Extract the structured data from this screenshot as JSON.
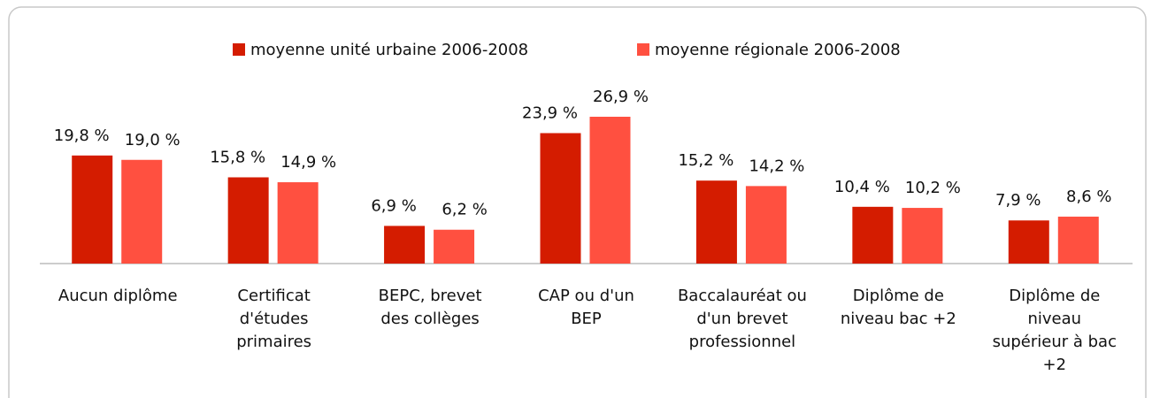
{
  "chart_data": {
    "type": "bar",
    "categories": [
      [
        "Aucun diplôme"
      ],
      [
        "Certificat",
        "d'études",
        "primaires"
      ],
      [
        "BEPC, brevet",
        "des collèges"
      ],
      [
        "CAP ou d'un",
        "BEP"
      ],
      [
        "Baccalauréat ou",
        "d'un brevet",
        "professionnel"
      ],
      [
        "Diplôme de",
        "niveau bac +2"
      ],
      [
        "Diplôme de",
        "niveau",
        "supérieur à bac",
        "+2"
      ]
    ],
    "series": [
      {
        "name": "moyenne unité urbaine 2006-2008",
        "color": "#d41c00",
        "values": [
          19.8,
          15.8,
          6.9,
          23.9,
          15.2,
          10.4,
          7.9
        ],
        "value_labels": [
          "19,8 %",
          "15,8 %",
          "6,9 %",
          "23,9 %",
          "15,2 %",
          "10,4 %",
          "7,9 %"
        ]
      },
      {
        "name": "moyenne régionale 2006-2008",
        "color": "#ff5040",
        "values": [
          19.0,
          14.9,
          6.2,
          26.9,
          14.2,
          10.2,
          8.6
        ],
        "value_labels": [
          "19,0 %",
          "14,9 %",
          "6,2 %",
          "26,9 %",
          "14,2 %",
          "10,2 %",
          "8,6 %"
        ]
      }
    ],
    "legend": "top"
  }
}
